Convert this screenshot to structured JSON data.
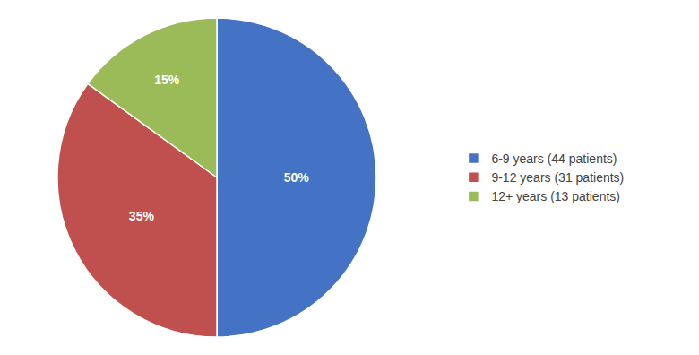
{
  "chart_data": {
    "type": "pie",
    "categories": [
      "6-9 years (44 patients)",
      "9-12 years (31 patients)",
      "12+ years (13 patients)"
    ],
    "values": [
      50,
      35,
      15
    ],
    "value_labels": [
      "50%",
      "35%",
      "15%"
    ],
    "colors": [
      "#4472C4",
      "#C0504D",
      "#9BBB59"
    ],
    "data_labels": true,
    "legend": "right"
  }
}
